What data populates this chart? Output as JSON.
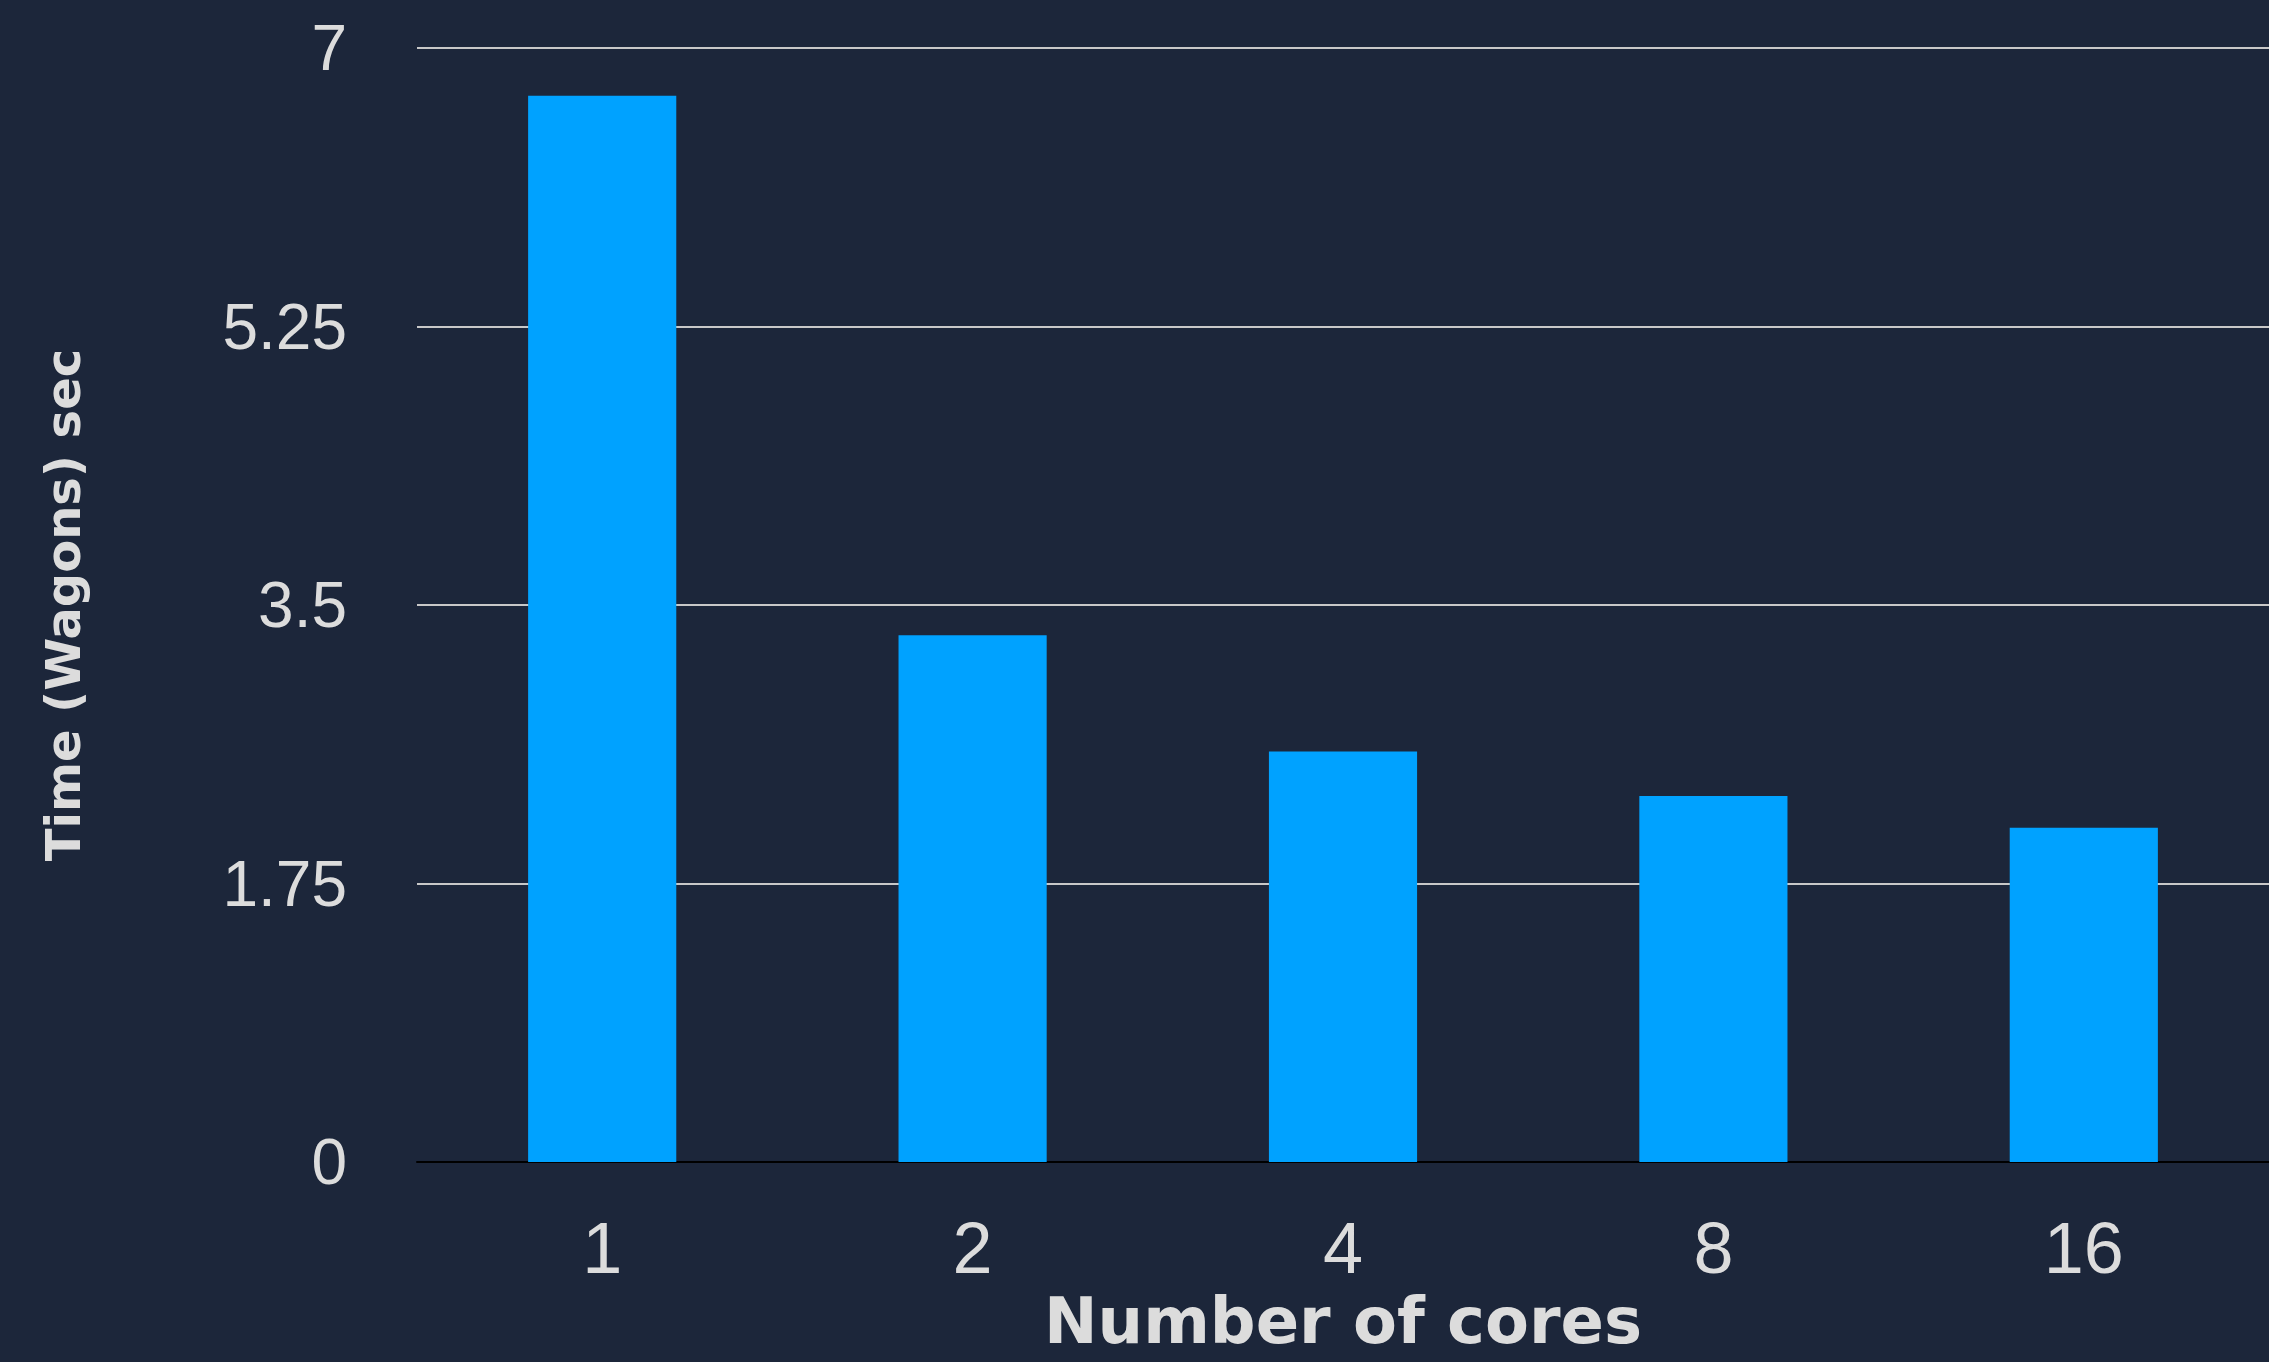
{
  "chart_data": {
    "type": "bar",
    "xlabel": "Number of cores",
    "ylabel": "Time (Wagons) sec",
    "categories": [
      "1",
      "2",
      "4",
      "8",
      "16"
    ],
    "values": [
      6.7,
      3.31,
      2.58,
      2.3,
      2.1
    ],
    "color": "#00a2ff",
    "ylim": [
      0,
      7
    ],
    "yticks": [
      0,
      1.75,
      3.5,
      5.25,
      7
    ],
    "grid": "y"
  }
}
